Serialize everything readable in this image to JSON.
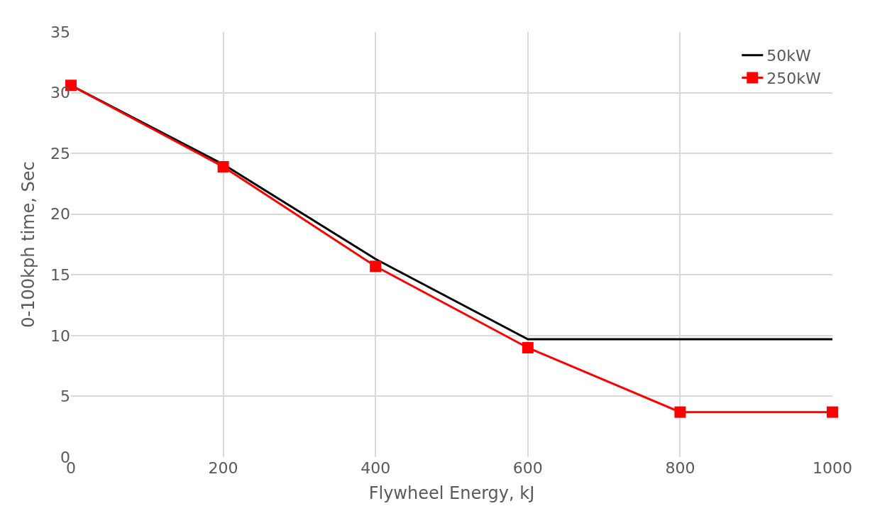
{
  "chart_data": {
    "type": "line",
    "xlabel": "Flywheel Energy, kJ",
    "ylabel": "0-100kph time, Sec",
    "x": [
      0,
      200,
      400,
      600,
      800,
      1000
    ],
    "series": [
      {
        "name": "50kW",
        "color": "#000000",
        "values": [
          30.6,
          24.1,
          16.3,
          9.7,
          9.7,
          9.7
        ],
        "marker": "none"
      },
      {
        "name": "250kW",
        "color": "#ff0000",
        "values": [
          30.6,
          23.9,
          15.7,
          9.0,
          3.7,
          3.7
        ],
        "marker": "square"
      }
    ],
    "xlim": [
      0,
      1000
    ],
    "xticks": [
      0,
      200,
      400,
      600,
      800,
      1000
    ],
    "ylim": [
      0,
      35
    ],
    "yticks": [
      0,
      5,
      10,
      15,
      20,
      25,
      30,
      35
    ],
    "grid": true,
    "legend": "top right",
    "line_style": "solid"
  }
}
